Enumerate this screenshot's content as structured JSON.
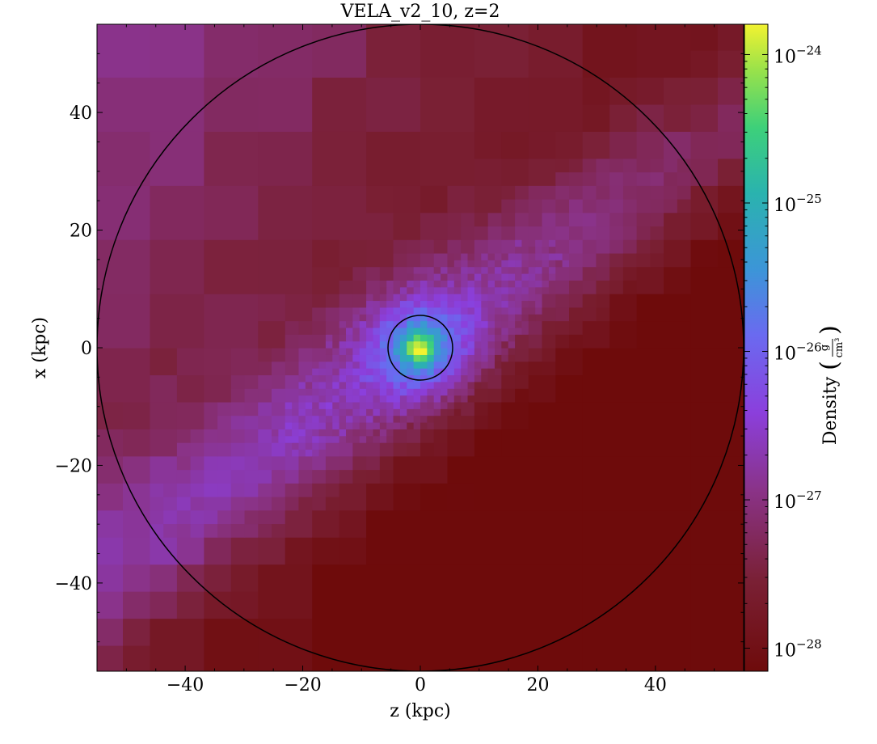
{
  "chart_data": {
    "type": "heatmap",
    "title": "VELA_v2_10, z=2",
    "xlabel": "z  (kpc)",
    "ylabel": "x  (kpc)",
    "xlim": [
      -55,
      55
    ],
    "ylim": [
      -55,
      55
    ],
    "x_ticks": [
      -40,
      -20,
      0,
      20,
      40
    ],
    "y_ticks": [
      -40,
      -20,
      0,
      20,
      40
    ],
    "x_tick_labels": [
      "−40",
      "−20",
      "0",
      "20",
      "40"
    ],
    "y_tick_labels": [
      "−40",
      "−20",
      "0",
      "20",
      "40"
    ],
    "colorbar": {
      "label": "Density",
      "unit_numerator": "g",
      "unit_denominator": "cm³",
      "scale": "log",
      "range": [
        7e-29,
        1.6e-24
      ],
      "colormap": "cubehelix-like (dark red → purple → blue → green → yellow)",
      "ticks": [
        1e-24,
        1e-25,
        1e-26,
        1e-27,
        1e-28
      ],
      "tick_labels": [
        {
          "base": "10",
          "exp": "−24"
        },
        {
          "base": "10",
          "exp": "−25"
        },
        {
          "base": "10",
          "exp": "−26"
        },
        {
          "base": "10",
          "exp": "−27"
        },
        {
          "base": "10",
          "exp": "−28"
        }
      ]
    },
    "overlays": [
      {
        "shape": "circle",
        "center": [
          0,
          0
        ],
        "radius": 55
      },
      {
        "shape": "circle",
        "center": [
          0,
          0
        ],
        "radius": 5.5
      }
    ],
    "features": {
      "filament_direction_deg": 35,
      "central_peak_density": 1.5e-24,
      "background_density_min": 1e-28
    }
  }
}
